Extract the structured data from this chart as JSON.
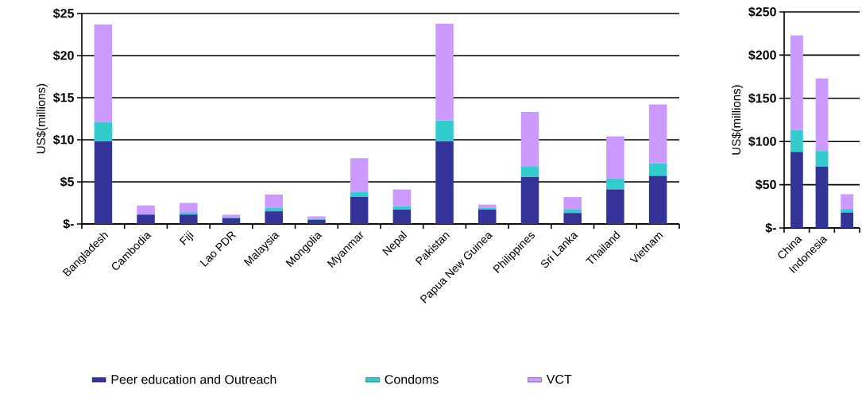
{
  "chart_data": [
    {
      "type": "bar",
      "stacked": true,
      "categories": [
        "Bangladesh",
        "Cambodia",
        "Fiji",
        "Lao PDR",
        "Malaysia",
        "Mongolia",
        "Myanmar",
        "Nepal",
        "Pakistan",
        "Papua New Guinea",
        "Philippines",
        "Sri Lanka",
        "Thailand",
        "Vietnam"
      ],
      "series": [
        {
          "name": "Peer education and Outreach",
          "color": "#333399",
          "values": [
            9.8,
            1.1,
            1.1,
            0.7,
            1.5,
            0.5,
            3.2,
            1.7,
            9.8,
            1.7,
            5.6,
            1.3,
            4.1,
            5.7
          ]
        },
        {
          "name": "Condoms",
          "color": "#33cccc",
          "values": [
            2.3,
            0.1,
            0.3,
            0.1,
            0.4,
            0.1,
            0.6,
            0.4,
            2.5,
            0.2,
            1.2,
            0.4,
            1.3,
            1.5
          ]
        },
        {
          "name": "VCT",
          "color": "#cc99ff",
          "values": [
            11.6,
            1.0,
            1.1,
            0.3,
            1.6,
            0.3,
            4.0,
            2.0,
            11.5,
            0.4,
            6.5,
            1.5,
            5.0,
            7.0
          ]
        }
      ],
      "ylabel": "US$(millions)",
      "ylim": [
        0,
        25
      ],
      "yticks": [
        {
          "value": 0,
          "label": "$-"
        },
        {
          "value": 5,
          "label": "$5"
        },
        {
          "value": 10,
          "label": "$10"
        },
        {
          "value": 15,
          "label": "$15"
        },
        {
          "value": 20,
          "label": "$20"
        },
        {
          "value": 25,
          "label": "$25"
        }
      ],
      "grid": "y",
      "legend": "bottom"
    },
    {
      "type": "bar",
      "stacked": true,
      "categories": [
        "China",
        "Indonesia",
        null
      ],
      "series": [
        {
          "color": "#333399",
          "values": [
            88,
            71,
            18
          ]
        },
        {
          "color": "#33cccc",
          "values": [
            25,
            18,
            4
          ]
        },
        {
          "color": "#cc99ff",
          "values": [
            110,
            84,
            17
          ]
        }
      ],
      "ylabel": "US$(millions)",
      "ylim": [
        0,
        250
      ],
      "yticks": [
        {
          "value": 0,
          "label": "$-"
        },
        {
          "value": 50,
          "label": "$50"
        },
        {
          "value": 100,
          "label": "$100"
        },
        {
          "value": 150,
          "label": "$150"
        },
        {
          "value": 200,
          "label": "$200"
        },
        {
          "value": 250,
          "label": "$250"
        }
      ],
      "grid": "y"
    }
  ]
}
